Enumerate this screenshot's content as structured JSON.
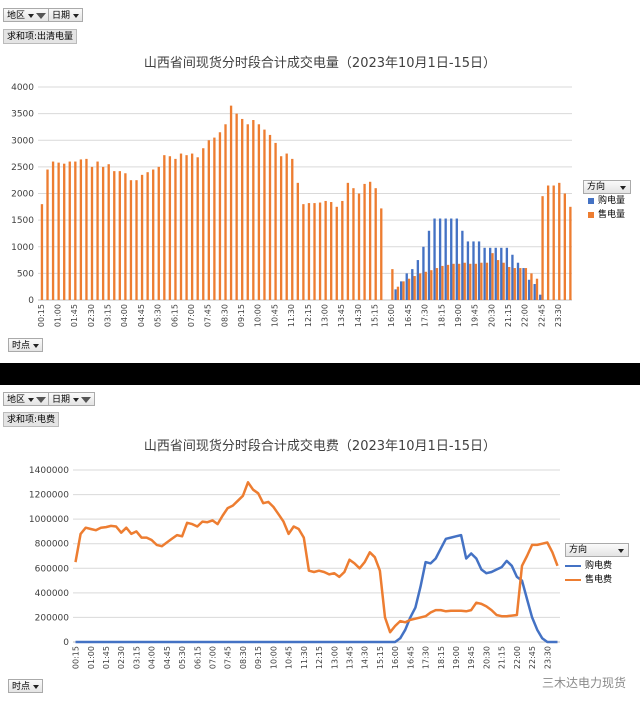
{
  "chart1": {
    "filter_region": "地区",
    "filter_date": "日期",
    "sum_label": "求和项:出清电量",
    "time_button": "时点",
    "legend_title": "方向",
    "colors": {
      "buy": "#4472C4",
      "sell": "#ED7D31"
    },
    "chart_data": {
      "type": "bar",
      "title": "山西省间现货分时段合计成交电量（2023年10月1日-15日）",
      "ylim": [
        0,
        4000
      ],
      "yticks": [
        0,
        500,
        1000,
        1500,
        2000,
        2500,
        3000,
        3500,
        4000
      ],
      "xtick_labels": [
        "00:15",
        "01:00",
        "01:45",
        "02:30",
        "03:15",
        "04:00",
        "04:45",
        "05:30",
        "06:15",
        "07:00",
        "07:45",
        "08:30",
        "09:15",
        "10:00",
        "10:45",
        "11:30",
        "12:15",
        "13:00",
        "13:45",
        "14:30",
        "15:15",
        "16:00",
        "16:45",
        "17:30",
        "18:15",
        "19:00",
        "19:45",
        "20:30",
        "21:15",
        "22:00",
        "22:45",
        "23:30"
      ],
      "series": [
        {
          "name": "购电量",
          "values": [
            0,
            0,
            0,
            0,
            0,
            0,
            0,
            0,
            0,
            0,
            0,
            0,
            0,
            0,
            0,
            0,
            0,
            0,
            0,
            0,
            0,
            0,
            0,
            0,
            0,
            0,
            0,
            0,
            0,
            0,
            0,
            0,
            0,
            0,
            0,
            0,
            0,
            0,
            0,
            0,
            0,
            0,
            0,
            0,
            0,
            0,
            0,
            0,
            0,
            0,
            0,
            0,
            0,
            0,
            0,
            0,
            0,
            0,
            0,
            0,
            0,
            0,
            0,
            0,
            200,
            350,
            500,
            580,
            750,
            1000,
            1300,
            1530,
            1530,
            1530,
            1530,
            1530,
            1300,
            1100,
            1100,
            1100,
            980,
            980,
            980,
            980,
            980,
            850,
            700,
            600,
            380,
            300,
            100,
            0,
            0,
            0,
            0,
            0
          ]
        },
        {
          "name": "售电量",
          "values": [
            1800,
            2450,
            2600,
            2580,
            2560,
            2600,
            2600,
            2640,
            2650,
            2500,
            2600,
            2500,
            2550,
            2420,
            2420,
            2380,
            2250,
            2250,
            2350,
            2400,
            2450,
            2500,
            2720,
            2700,
            2650,
            2750,
            2720,
            2750,
            2680,
            2850,
            3000,
            3050,
            3150,
            3300,
            3650,
            3500,
            3400,
            3300,
            3380,
            3300,
            3200,
            3100,
            2950,
            2700,
            2750,
            2650,
            2200,
            1800,
            1820,
            1820,
            1830,
            1860,
            1840,
            1750,
            1860,
            2200,
            2100,
            2000,
            2180,
            2220,
            2100,
            1720,
            0,
            580,
            250,
            350,
            400,
            450,
            500,
            530,
            560,
            600,
            640,
            660,
            680,
            680,
            700,
            680,
            680,
            700,
            700,
            880,
            750,
            700,
            620,
            600,
            600,
            600,
            500,
            400,
            1950,
            2150,
            2150,
            2200,
            2000,
            1750
          ]
        }
      ]
    }
  },
  "chart2": {
    "filter_region": "地区",
    "filter_date": "日期",
    "sum_label": "求和项:电费",
    "time_button": "时点",
    "legend_title": "方向",
    "colors": {
      "buy": "#4472C4",
      "sell": "#ED7D31"
    },
    "chart_data": {
      "type": "line",
      "title": "山西省间现货分时段合计成交电费（2023年10月1日-15日）",
      "ylim": [
        0,
        1400000
      ],
      "yticks": [
        0,
        200000,
        400000,
        600000,
        800000,
        1000000,
        1200000,
        1400000
      ],
      "xtick_labels": [
        "00:15",
        "01:00",
        "01:45",
        "02:30",
        "03:15",
        "04:00",
        "04:45",
        "05:30",
        "06:15",
        "07:00",
        "07:45",
        "08:30",
        "09:15",
        "10:00",
        "10:45",
        "11:30",
        "12:15",
        "13:00",
        "13:45",
        "14:30",
        "15:15",
        "16:00",
        "16:45",
        "17:30",
        "18:15",
        "19:00",
        "19:45",
        "20:30",
        "21:15",
        "22:00",
        "22:45",
        "23:30"
      ],
      "series": [
        {
          "name": "购电费",
          "values": [
            0,
            0,
            0,
            0,
            0,
            0,
            0,
            0,
            0,
            0,
            0,
            0,
            0,
            0,
            0,
            0,
            0,
            0,
            0,
            0,
            0,
            0,
            0,
            0,
            0,
            0,
            0,
            0,
            0,
            0,
            0,
            0,
            0,
            0,
            0,
            0,
            0,
            0,
            0,
            0,
            0,
            0,
            0,
            0,
            0,
            0,
            0,
            0,
            0,
            0,
            0,
            0,
            0,
            0,
            0,
            0,
            0,
            0,
            0,
            0,
            0,
            0,
            0,
            0,
            30000,
            100000,
            200000,
            280000,
            450000,
            650000,
            640000,
            680000,
            760000,
            840000,
            850000,
            860000,
            870000,
            680000,
            720000,
            680000,
            590000,
            560000,
            570000,
            590000,
            610000,
            660000,
            620000,
            530000,
            500000,
            350000,
            200000,
            100000,
            30000,
            0,
            0,
            0
          ]
        },
        {
          "name": "售电费",
          "values": [
            650000,
            880000,
            930000,
            920000,
            910000,
            930000,
            935000,
            945000,
            940000,
            890000,
            930000,
            880000,
            900000,
            850000,
            850000,
            830000,
            790000,
            780000,
            810000,
            840000,
            870000,
            860000,
            970000,
            960000,
            940000,
            980000,
            975000,
            990000,
            960000,
            1030000,
            1090000,
            1110000,
            1150000,
            1190000,
            1300000,
            1240000,
            1210000,
            1130000,
            1140000,
            1100000,
            1040000,
            980000,
            880000,
            940000,
            920000,
            850000,
            580000,
            570000,
            580000,
            570000,
            550000,
            560000,
            530000,
            570000,
            670000,
            640000,
            600000,
            650000,
            730000,
            690000,
            580000,
            200000,
            80000,
            130000,
            170000,
            160000,
            180000,
            190000,
            200000,
            210000,
            240000,
            260000,
            260000,
            250000,
            255000,
            255000,
            255000,
            250000,
            260000,
            320000,
            310000,
            290000,
            260000,
            220000,
            210000,
            210000,
            215000,
            220000,
            620000,
            700000,
            790000,
            790000,
            800000,
            810000,
            730000,
            620000
          ]
        }
      ]
    }
  },
  "watermark": "三木达电力现货"
}
